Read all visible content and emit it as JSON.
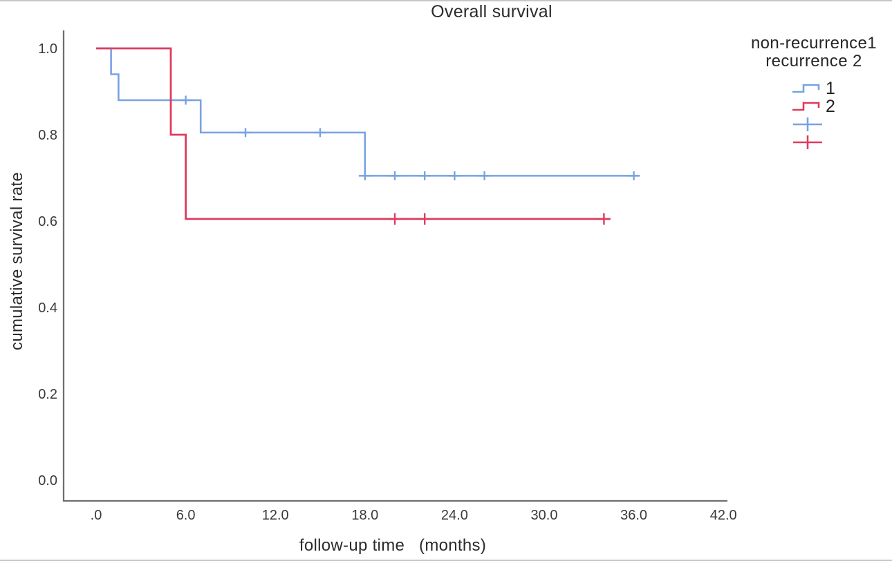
{
  "page": {
    "background": "#ffffff"
  },
  "colors": {
    "series1_blue": "#78a2e3",
    "series2_red": "#e03a60",
    "axis": "#6e6e6e",
    "tick_text": "#3a3a3a",
    "title_text": "#2b2b2b"
  },
  "chart_data": {
    "type": "line",
    "subtype": "kaplan-meier-step",
    "title": "Overall survival",
    "xlabel": "follow-up time   (months)",
    "ylabel": "cumulative survival rate",
    "grid": false,
    "legend_position": "outside-top-right",
    "xlim": [
      -2.2,
      42.3
    ],
    "ylim": [
      -0.048,
      1.048
    ],
    "x_ticks": {
      "values": [
        0,
        6,
        12,
        18,
        24,
        30,
        36,
        42
      ],
      "labels": [
        ".0",
        "6.0",
        "12.0",
        "18.0",
        "24.0",
        "30.0",
        "36.0",
        "42.0"
      ]
    },
    "y_ticks": {
      "values": [
        0.0,
        0.2,
        0.4,
        0.6,
        0.8,
        1.0
      ],
      "labels": [
        "0.0",
        "0.2",
        "0.4",
        "0.6",
        "0.8",
        "1.0"
      ]
    },
    "series": [
      {
        "name": "1",
        "group": "non-recurrence",
        "color": "#78a2e3",
        "steps": [
          [
            0,
            1.0
          ],
          [
            1,
            0.94
          ],
          [
            1.5,
            0.88
          ],
          [
            7,
            0.805
          ],
          [
            18,
            0.705
          ]
        ],
        "end_time": 36.3,
        "censored_times": [
          6,
          10,
          15,
          18,
          20,
          22,
          24,
          26,
          36
        ]
      },
      {
        "name": "2",
        "group": "recurrence",
        "color": "#e03a60",
        "steps": [
          [
            0,
            1.0
          ],
          [
            5,
            0.8
          ],
          [
            6,
            0.605
          ]
        ],
        "end_time": 34.4,
        "censored_times": [
          20,
          22,
          34
        ]
      }
    ]
  },
  "legend": {
    "title_line1": "non-recurrence1",
    "title_line2": "recurrence 2",
    "items": [
      {
        "label": "1",
        "glyph": "step-line",
        "color": "#78a2e3"
      },
      {
        "label": "2",
        "glyph": "step-line",
        "color": "#e03a60"
      },
      {
        "label": "",
        "glyph": "censor-plus",
        "color": "#78a2e3"
      },
      {
        "label": "",
        "glyph": "censor-plus",
        "color": "#e03a60"
      }
    ]
  }
}
